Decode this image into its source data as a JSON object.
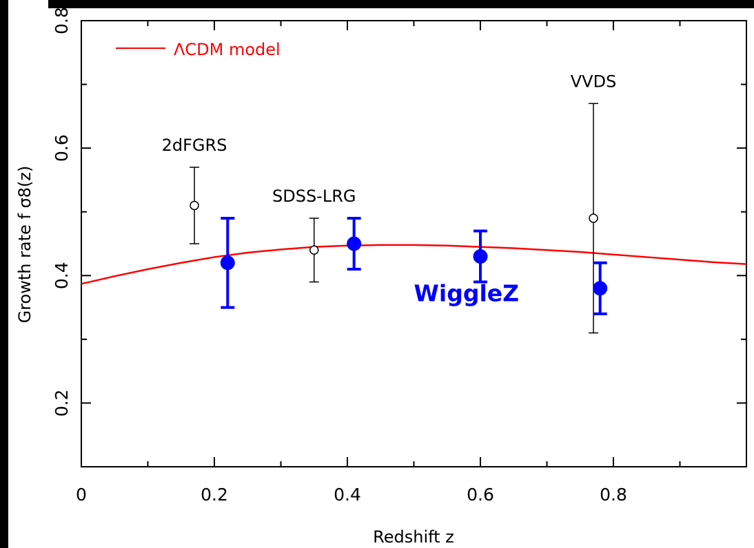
{
  "chart_data": {
    "type": "scatter",
    "xlabel": "Redshift z",
    "ylabel": "Growth rate f σ8(z)",
    "xlim": [
      0,
      1.0
    ],
    "ylim": [
      0.1,
      0.8
    ],
    "x_ticks": [
      "0",
      "0.2",
      "0.4",
      "0.6",
      "0.8"
    ],
    "y_ticks": [
      "0.2",
      "0.4",
      "0.6",
      "0.8"
    ],
    "legend": {
      "placement": "top-left",
      "label": "ΛCDM model",
      "color": "#ff0000"
    },
    "model_curve": {
      "name": "ΛCDM model",
      "color": "#ff0000",
      "x": [
        0.0,
        0.05,
        0.1,
        0.15,
        0.2,
        0.25,
        0.3,
        0.35,
        0.4,
        0.45,
        0.5,
        0.55,
        0.6,
        0.65,
        0.7,
        0.75,
        0.8,
        0.85,
        0.9,
        0.95,
        1.0
      ],
      "y": [
        0.387,
        0.399,
        0.41,
        0.42,
        0.429,
        0.436,
        0.441,
        0.445,
        0.447,
        0.448,
        0.448,
        0.447,
        0.445,
        0.443,
        0.44,
        0.437,
        0.433,
        0.429,
        0.425,
        0.421,
        0.418
      ]
    },
    "series": [
      {
        "color": "#000000",
        "marker": "open-circle",
        "points": [
          {
            "x": 0.17,
            "y": 0.51,
            "err": 0.06,
            "label": "2dFGRS"
          },
          {
            "x": 0.35,
            "y": 0.44,
            "err": 0.05,
            "label": "SDSS-LRG"
          },
          {
            "x": 0.77,
            "y": 0.49,
            "err": 0.18,
            "label": "VVDS"
          }
        ]
      },
      {
        "name": "WiggleZ",
        "color": "#0000ff",
        "marker": "filled-circle",
        "points": [
          {
            "x": 0.22,
            "y": 0.42,
            "err": 0.07
          },
          {
            "x": 0.41,
            "y": 0.45,
            "err": 0.04
          },
          {
            "x": 0.6,
            "y": 0.43,
            "err": 0.04
          },
          {
            "x": 0.78,
            "y": 0.38,
            "err": 0.04
          }
        ]
      }
    ]
  }
}
